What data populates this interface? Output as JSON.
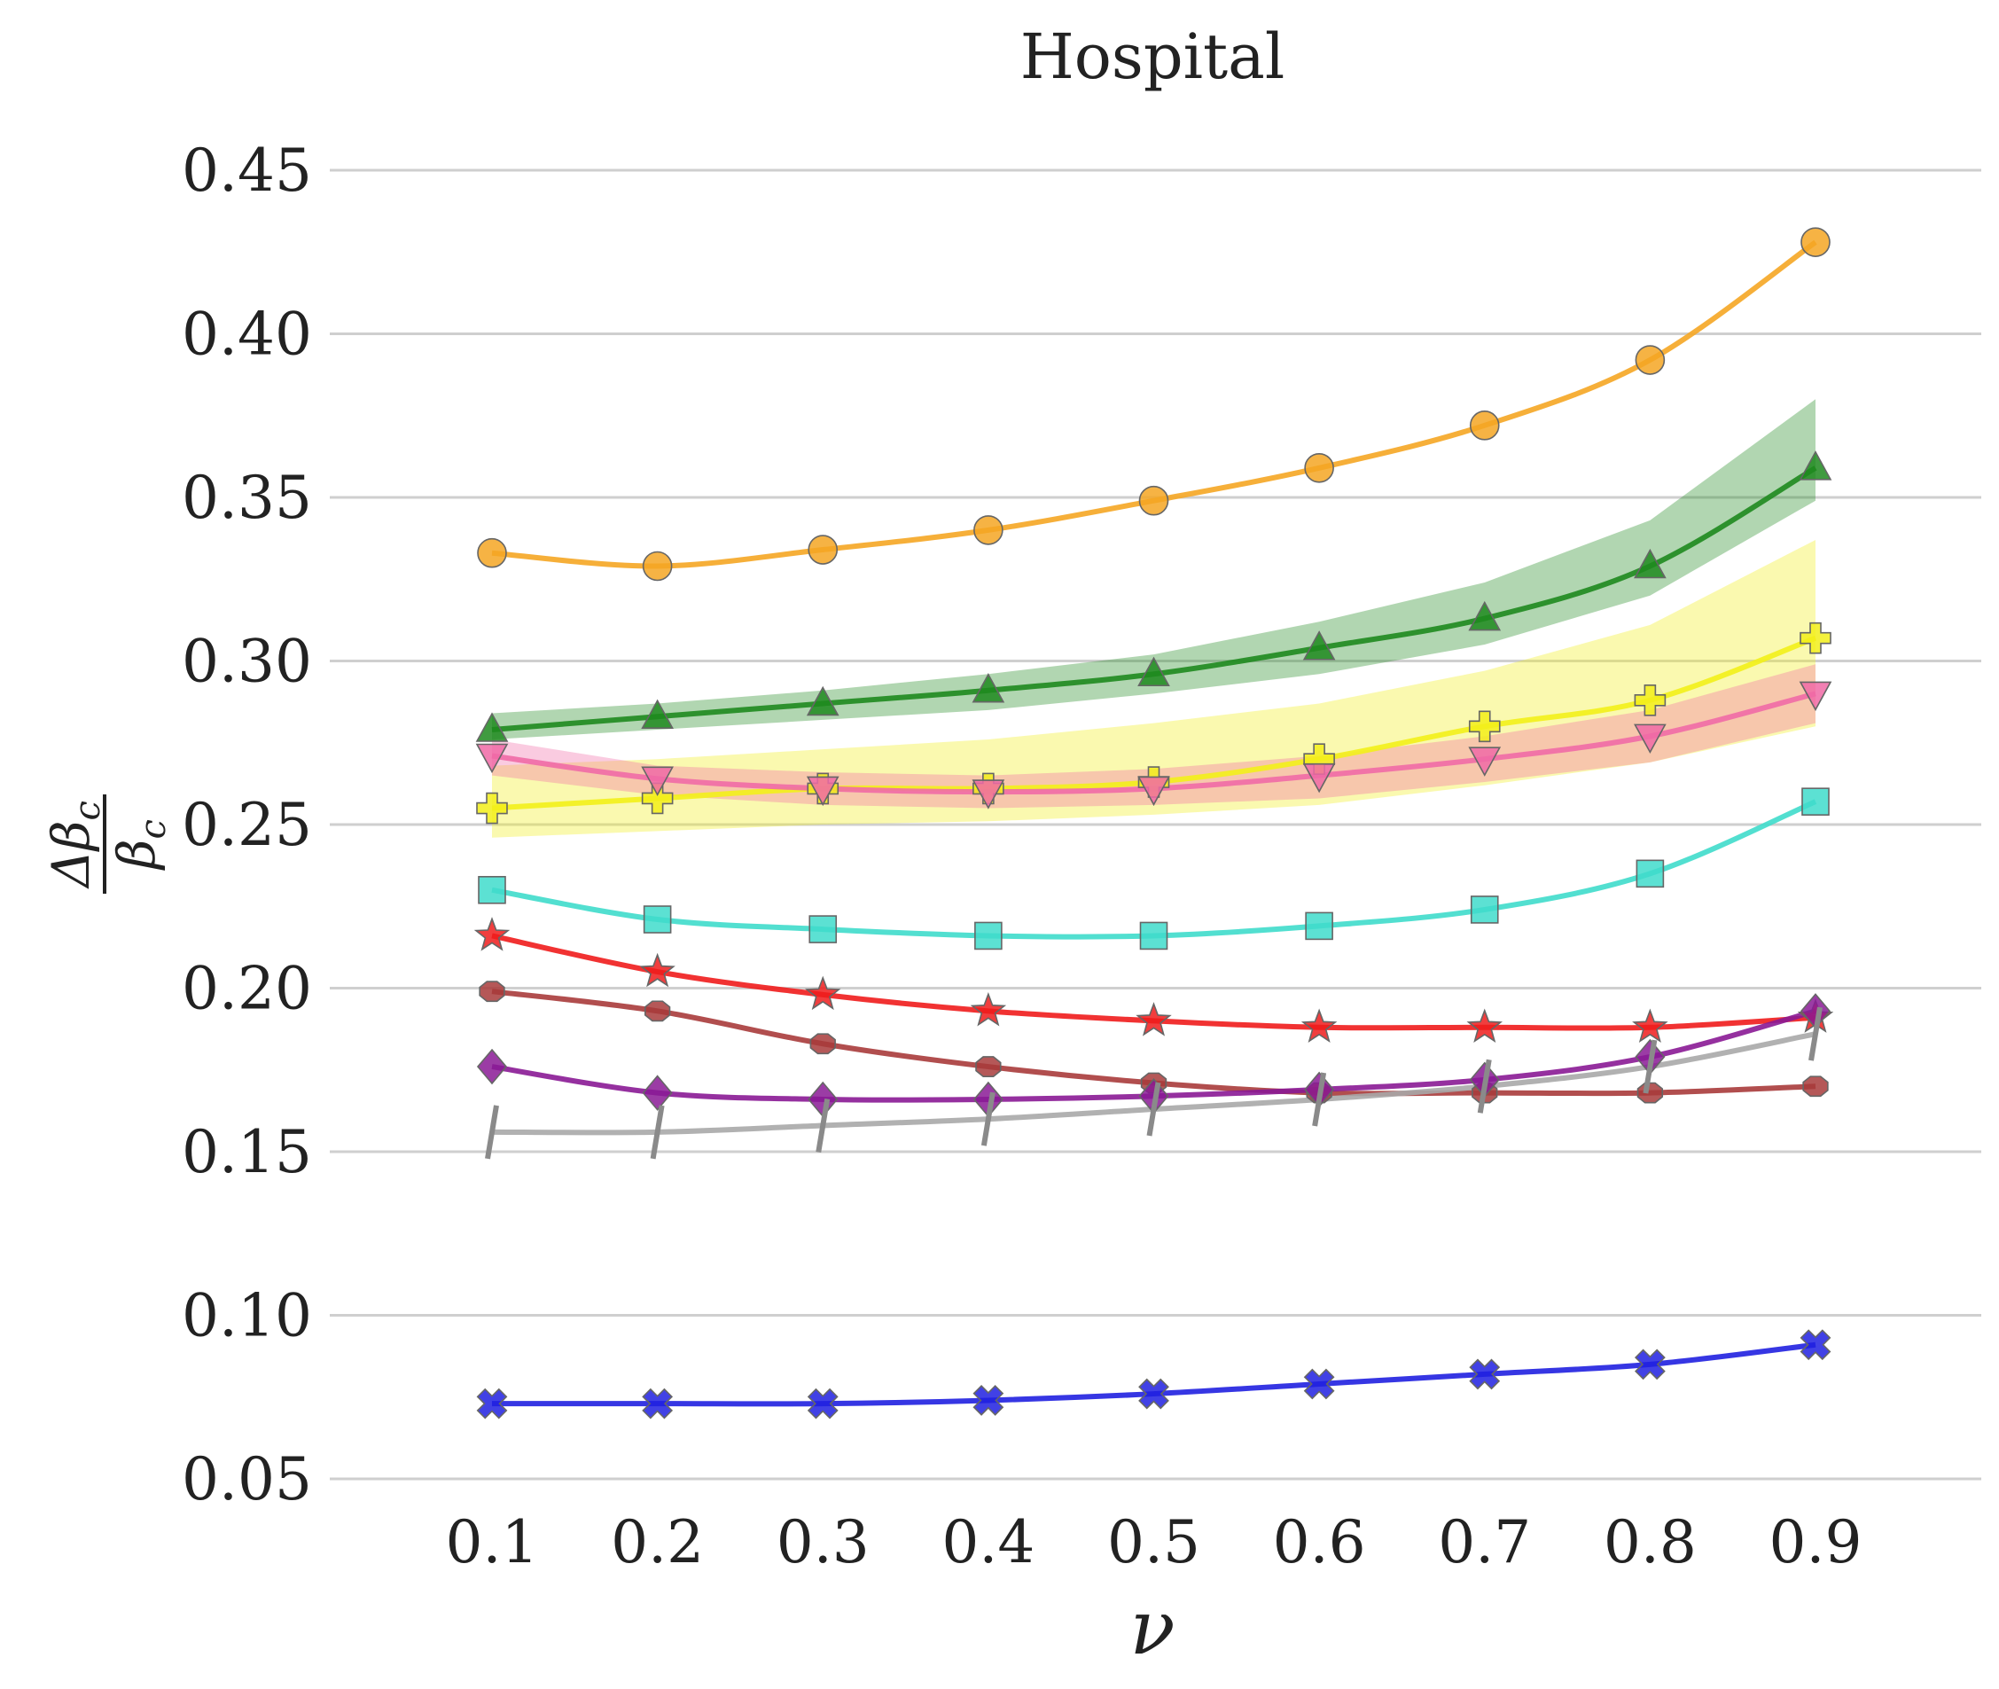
{
  "chart_data": {
    "type": "line",
    "title": "Hospital",
    "xlabel": "ν",
    "ylabel": "Δβ_c / β_c",
    "ylabel_parts": {
      "delta": "Δβ",
      "sub": "c",
      "beta": "β"
    },
    "grid": true,
    "x": [
      0.1,
      0.2,
      0.3,
      0.4,
      0.5,
      0.6,
      0.7,
      0.8,
      0.9
    ],
    "x_tick_labels": [
      "0.1",
      "0.2",
      "0.3",
      "0.4",
      "0.5",
      "0.6",
      "0.7",
      "0.8",
      "0.9"
    ],
    "ylim": [
      0.05,
      0.45
    ],
    "y_ticks": [
      0.05,
      0.1,
      0.15,
      0.2,
      0.25,
      0.3,
      0.35,
      0.4,
      0.45
    ],
    "y_tick_labels": [
      "0.05",
      "0.10",
      "0.15",
      "0.20",
      "0.25",
      "0.30",
      "0.35",
      "0.40",
      "0.45"
    ],
    "series": [
      {
        "name": "orange",
        "color": "#f5a623",
        "marker": "circle",
        "values": [
          0.333,
          0.329,
          0.334,
          0.34,
          0.349,
          0.359,
          0.372,
          0.392,
          0.428
        ]
      },
      {
        "name": "green",
        "color": "#1f8a1f",
        "marker": "triangle-up",
        "values": [
          0.279,
          0.283,
          0.287,
          0.291,
          0.296,
          0.304,
          0.313,
          0.329,
          0.359
        ],
        "band_low": [
          0.276,
          0.279,
          0.282,
          0.285,
          0.29,
          0.296,
          0.305,
          0.32,
          0.349
        ],
        "band_high": [
          0.284,
          0.287,
          0.291,
          0.296,
          0.302,
          0.312,
          0.324,
          0.343,
          0.38
        ]
      },
      {
        "name": "yellow",
        "color": "#f2ef1a",
        "marker": "plus",
        "values": [
          0.255,
          0.258,
          0.261,
          0.261,
          0.263,
          0.27,
          0.28,
          0.288,
          0.307
        ],
        "band_low": [
          0.246,
          0.248,
          0.25,
          0.251,
          0.253,
          0.256,
          0.262,
          0.269,
          0.28
        ],
        "band_high": [
          0.268,
          0.27,
          0.273,
          0.276,
          0.281,
          0.287,
          0.297,
          0.311,
          0.337
        ]
      },
      {
        "name": "pink",
        "color": "#f06aa6",
        "marker": "triangle-down",
        "values": [
          0.271,
          0.264,
          0.261,
          0.26,
          0.261,
          0.265,
          0.27,
          0.277,
          0.29
        ],
        "band_low": [
          0.265,
          0.259,
          0.256,
          0.255,
          0.256,
          0.258,
          0.263,
          0.269,
          0.281
        ],
        "band_high": [
          0.276,
          0.268,
          0.266,
          0.265,
          0.267,
          0.271,
          0.277,
          0.285,
          0.299
        ]
      },
      {
        "name": "turquoise",
        "color": "#3fdccb",
        "marker": "square",
        "values": [
          0.23,
          0.221,
          0.218,
          0.216,
          0.216,
          0.219,
          0.224,
          0.235,
          0.257
        ]
      },
      {
        "name": "red",
        "color": "#ef1c1c",
        "marker": "star",
        "values": [
          0.216,
          0.205,
          0.198,
          0.193,
          0.19,
          0.188,
          0.188,
          0.188,
          0.191
        ]
      },
      {
        "name": "brown",
        "color": "#a83b3b",
        "marker": "octagon",
        "values": [
          0.199,
          0.193,
          0.183,
          0.176,
          0.171,
          0.168,
          0.168,
          0.168,
          0.17
        ]
      },
      {
        "name": "purple",
        "color": "#8a1a95",
        "marker": "diamond",
        "values": [
          0.176,
          0.168,
          0.166,
          0.166,
          0.167,
          0.169,
          0.172,
          0.179,
          0.193
        ]
      },
      {
        "name": "gray",
        "color": "#a8a8a8",
        "marker": "slash",
        "values": [
          0.156,
          0.156,
          0.158,
          0.16,
          0.163,
          0.166,
          0.17,
          0.176,
          0.186
        ]
      },
      {
        "name": "blue",
        "color": "#2020e0",
        "marker": "x",
        "values": [
          0.073,
          0.073,
          0.073,
          0.074,
          0.076,
          0.079,
          0.082,
          0.085,
          0.091
        ]
      }
    ]
  }
}
